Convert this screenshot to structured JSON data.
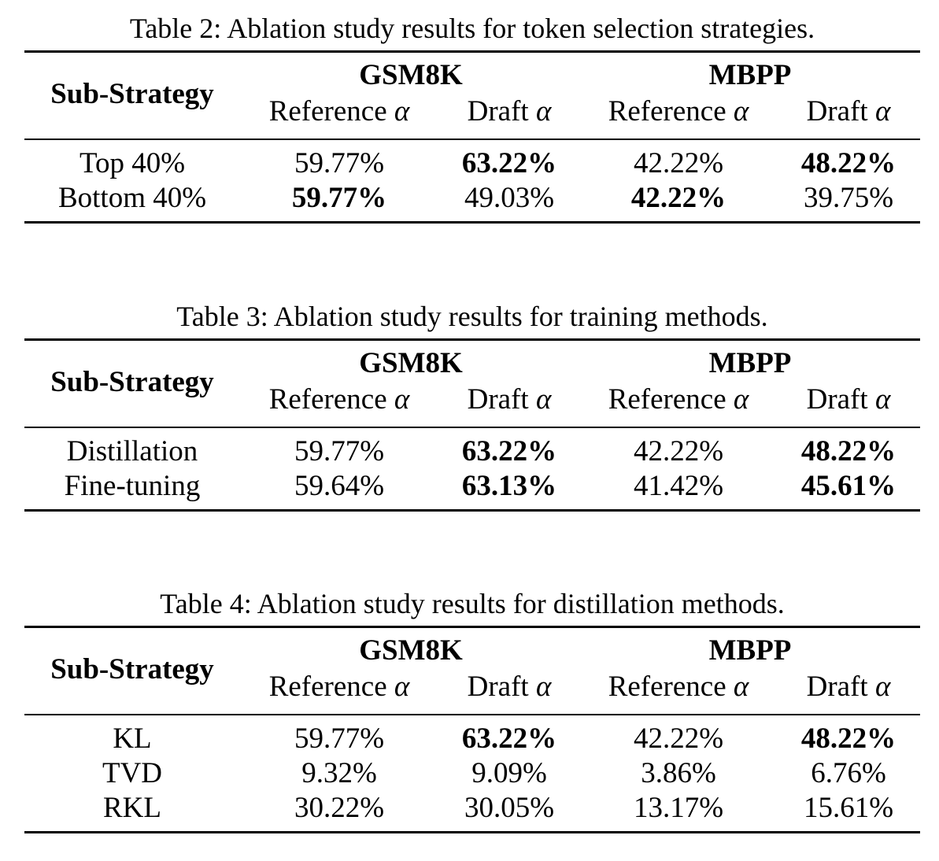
{
  "tables": [
    {
      "caption": "Table 2: Ablation study results for token selection strategies.",
      "row_header": "Sub-Strategy",
      "groups": [
        "GSM8K",
        "MBPP"
      ],
      "columns": [
        "Reference α",
        "Draft α",
        "Reference α",
        "Draft α"
      ],
      "rows": [
        {
          "label": "Top 40%",
          "values": [
            "59.77%",
            "63.22%",
            "42.22%",
            "48.22%"
          ],
          "bold": [
            false,
            true,
            false,
            true
          ]
        },
        {
          "label": "Bottom 40%",
          "values": [
            "59.77%",
            "49.03%",
            "42.22%",
            "39.75%"
          ],
          "bold": [
            true,
            false,
            true,
            false
          ]
        }
      ]
    },
    {
      "caption": "Table 3: Ablation study results for training methods.",
      "row_header": "Sub-Strategy",
      "groups": [
        "GSM8K",
        "MBPP"
      ],
      "columns": [
        "Reference α",
        "Draft α",
        "Reference α",
        "Draft α"
      ],
      "rows": [
        {
          "label": "Distillation",
          "values": [
            "59.77%",
            "63.22%",
            "42.22%",
            "48.22%"
          ],
          "bold": [
            false,
            true,
            false,
            true
          ]
        },
        {
          "label": "Fine-tuning",
          "values": [
            "59.64%",
            "63.13%",
            "41.42%",
            "45.61%"
          ],
          "bold": [
            false,
            true,
            false,
            true
          ]
        }
      ]
    },
    {
      "caption": "Table 4: Ablation study results for distillation methods.",
      "row_header": "Sub-Strategy",
      "groups": [
        "GSM8K",
        "MBPP"
      ],
      "columns": [
        "Reference α",
        "Draft α",
        "Reference α",
        "Draft α"
      ],
      "rows": [
        {
          "label": "KL",
          "values": [
            "59.77%",
            "63.22%",
            "42.22%",
            "48.22%"
          ],
          "bold": [
            false,
            true,
            false,
            true
          ]
        },
        {
          "label": "TVD",
          "values": [
            "9.32%",
            "9.09%",
            "3.86%",
            "6.76%"
          ],
          "bold": [
            false,
            false,
            false,
            false
          ]
        },
        {
          "label": "RKL",
          "values": [
            "30.22%",
            "30.05%",
            "13.17%",
            "15.61%"
          ],
          "bold": [
            false,
            false,
            false,
            false
          ]
        }
      ]
    }
  ]
}
